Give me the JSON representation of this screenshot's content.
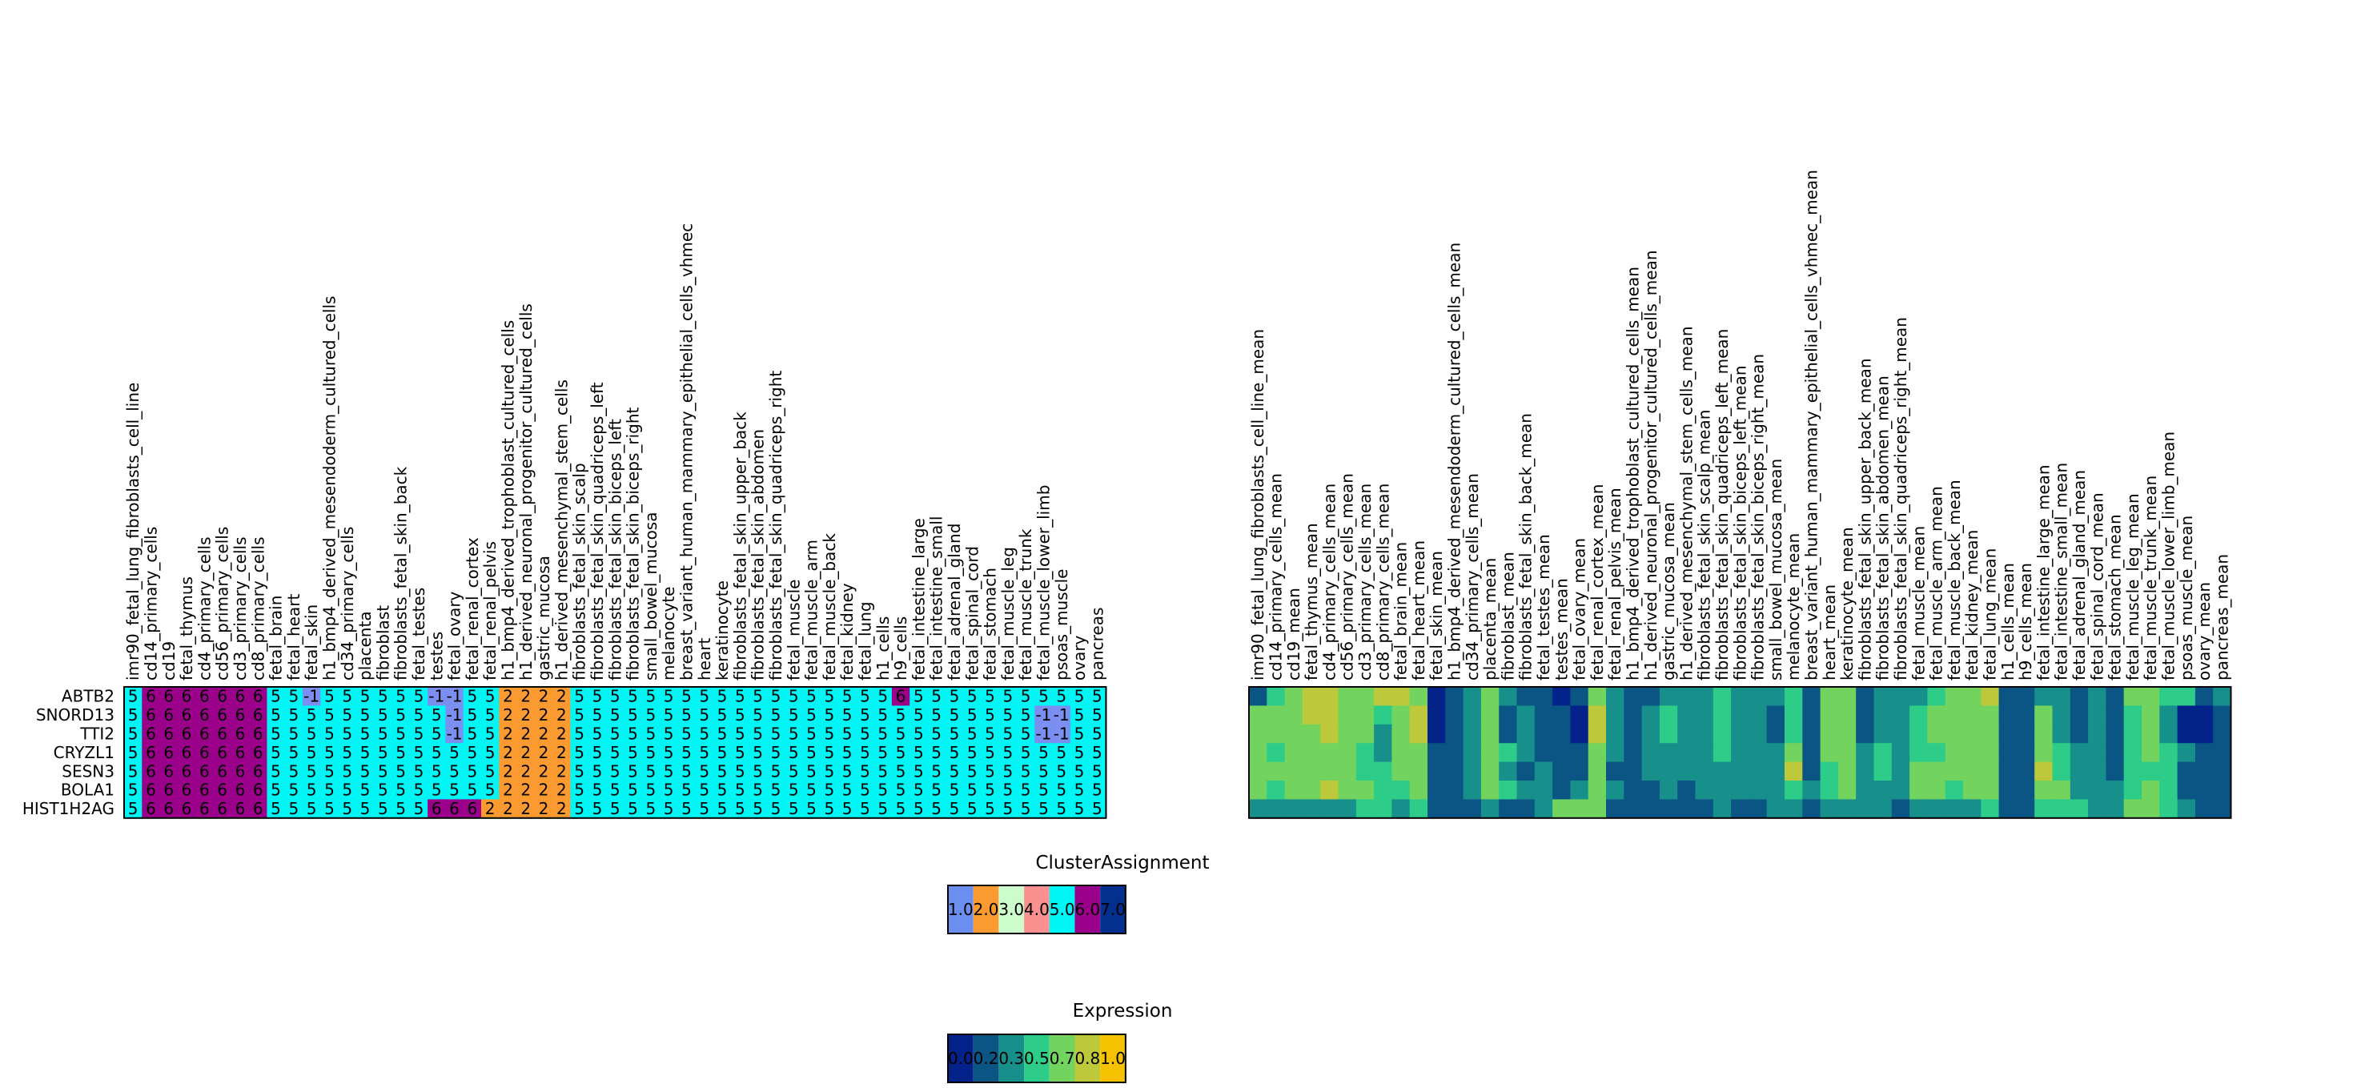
{
  "colors": {
    "cluster": {
      "-1": "#7b8ff0",
      "1": "#6b8ff0",
      "2": "#fb9a30",
      "3": "#ccfccc",
      "4": "#fb9090",
      "5": "#00f5f5",
      "6": "#9b008b",
      "7": "#03308f"
    },
    "expression_scale": [
      "#03228a",
      "#0b5585",
      "#178f8b",
      "#2dcc88",
      "#72d45e",
      "#bdc93a",
      "#f6c200"
    ],
    "border": "#000000"
  },
  "chart_data": [
    {
      "type": "heatmap",
      "name": "cluster-heatmap",
      "rows": [
        "ABTB2",
        "SNORD13",
        "TTI2",
        "CRYZL1",
        "SESN3",
        "BOLA1",
        "HIST1H2AG"
      ],
      "columns": [
        "imr90_fetal_lung_fibroblasts_cell_line",
        "cd14_primary_cells",
        "cd19",
        "fetal_thymus",
        "cd4_primary_cells",
        "cd56_primary_cells",
        "cd3_primary_cells",
        "cd8_primary_cells",
        "fetal_brain",
        "fetal_heart",
        "fetal_skin",
        "h1_bmp4_derived_mesendoderm_cultured_cells",
        "cd34_primary_cells",
        "placenta",
        "fibroblast",
        "fibroblasts_fetal_skin_back",
        "fetal_testes",
        "testes",
        "fetal_ovary",
        "fetal_renal_cortex",
        "fetal_renal_pelvis",
        "h1_bmp4_derived_trophoblast_cultured_cells",
        "h1_derived_neuronal_progenitor_cultured_cells",
        "gastric_mucosa",
        "h1_derived_mesenchymal_stem_cells",
        "fibroblasts_fetal_skin_scalp",
        "fibroblasts_fetal_skin_quadriceps_left",
        "fibroblasts_fetal_skin_biceps_left",
        "fibroblasts_fetal_skin_biceps_right",
        "small_bowel_mucosa",
        "melanocyte",
        "breast_variant_human_mammary_epithelial_cells_vhmec",
        "heart",
        "keratinocyte",
        "fibroblasts_fetal_skin_upper_back",
        "fibroblasts_fetal_skin_abdomen",
        "fibroblasts_fetal_skin_quadriceps_right",
        "fetal_muscle",
        "fetal_muscle_arm",
        "fetal_muscle_back",
        "fetal_kidney",
        "fetal_lung",
        "h1_cells",
        "h9_cells",
        "fetal_intestine_large",
        "fetal_intestine_small",
        "fetal_adrenal_gland",
        "fetal_spinal_cord",
        "fetal_stomach",
        "fetal_muscle_leg",
        "fetal_muscle_trunk",
        "fetal_muscle_lower_limb",
        "psoas_muscle",
        "ovary",
        "pancreas"
      ],
      "values": [
        [
          5,
          6,
          6,
          6,
          6,
          6,
          6,
          6,
          5,
          5,
          -1,
          5,
          5,
          5,
          5,
          5,
          5,
          -1,
          -1,
          5,
          5,
          2,
          2,
          2,
          2,
          5,
          5,
          5,
          5,
          5,
          5,
          5,
          5,
          5,
          5,
          5,
          5,
          5,
          5,
          5,
          5,
          5,
          5,
          6,
          5,
          5,
          5,
          5,
          5,
          5,
          5,
          5,
          5,
          5,
          5
        ],
        [
          5,
          6,
          6,
          6,
          6,
          6,
          6,
          6,
          5,
          5,
          5,
          5,
          5,
          5,
          5,
          5,
          5,
          5,
          -1,
          5,
          5,
          2,
          2,
          2,
          2,
          5,
          5,
          5,
          5,
          5,
          5,
          5,
          5,
          5,
          5,
          5,
          5,
          5,
          5,
          5,
          5,
          5,
          5,
          5,
          5,
          5,
          5,
          5,
          5,
          5,
          5,
          -1,
          -1,
          5,
          5
        ],
        [
          5,
          6,
          6,
          6,
          6,
          6,
          6,
          6,
          5,
          5,
          5,
          5,
          5,
          5,
          5,
          5,
          5,
          5,
          -1,
          5,
          5,
          2,
          2,
          2,
          2,
          5,
          5,
          5,
          5,
          5,
          5,
          5,
          5,
          5,
          5,
          5,
          5,
          5,
          5,
          5,
          5,
          5,
          5,
          5,
          5,
          5,
          5,
          5,
          5,
          5,
          5,
          -1,
          -1,
          5,
          5
        ],
        [
          5,
          6,
          6,
          6,
          6,
          6,
          6,
          6,
          5,
          5,
          5,
          5,
          5,
          5,
          5,
          5,
          5,
          5,
          5,
          5,
          5,
          2,
          2,
          2,
          2,
          5,
          5,
          5,
          5,
          5,
          5,
          5,
          5,
          5,
          5,
          5,
          5,
          5,
          5,
          5,
          5,
          5,
          5,
          5,
          5,
          5,
          5,
          5,
          5,
          5,
          5,
          5,
          5,
          5,
          5
        ],
        [
          5,
          6,
          6,
          6,
          6,
          6,
          6,
          6,
          5,
          5,
          5,
          5,
          5,
          5,
          5,
          5,
          5,
          5,
          5,
          5,
          5,
          2,
          2,
          2,
          2,
          5,
          5,
          5,
          5,
          5,
          5,
          5,
          5,
          5,
          5,
          5,
          5,
          5,
          5,
          5,
          5,
          5,
          5,
          5,
          5,
          5,
          5,
          5,
          5,
          5,
          5,
          5,
          5,
          5,
          5
        ],
        [
          5,
          6,
          6,
          6,
          6,
          6,
          6,
          6,
          5,
          5,
          5,
          5,
          5,
          5,
          5,
          5,
          5,
          5,
          5,
          5,
          5,
          2,
          2,
          2,
          2,
          5,
          5,
          5,
          5,
          5,
          5,
          5,
          5,
          5,
          5,
          5,
          5,
          5,
          5,
          5,
          5,
          5,
          5,
          5,
          5,
          5,
          5,
          5,
          5,
          5,
          5,
          5,
          5,
          5,
          5
        ],
        [
          5,
          6,
          6,
          6,
          6,
          6,
          6,
          6,
          5,
          5,
          5,
          5,
          5,
          5,
          5,
          5,
          5,
          6,
          6,
          6,
          2,
          2,
          2,
          2,
          2,
          5,
          5,
          5,
          5,
          5,
          5,
          5,
          5,
          5,
          5,
          5,
          5,
          5,
          5,
          5,
          5,
          5,
          5,
          5,
          5,
          5,
          5,
          5,
          5,
          5,
          5,
          5,
          5,
          5,
          5
        ]
      ]
    },
    {
      "type": "heatmap",
      "name": "expression-heatmap",
      "rows": [
        "ABTB2",
        "SNORD13",
        "TTI2",
        "CRYZL1",
        "SESN3",
        "BOLA1",
        "HIST1H2AG"
      ],
      "columns": [
        "imr90_fetal_lung_fibroblasts_cell_line_mean",
        "cd14_primary_cells_mean",
        "cd19_mean",
        "fetal_thymus_mean",
        "cd4_primary_cells_mean",
        "cd56_primary_cells_mean",
        "cd3_primary_cells_mean",
        "cd8_primary_cells_mean",
        "fetal_brain_mean",
        "fetal_heart_mean",
        "fetal_skin_mean",
        "h1_bmp4_derived_mesendoderm_cultured_cells_mean",
        "cd34_primary_cells_mean",
        "placenta_mean",
        "fibroblast_mean",
        "fibroblasts_fetal_skin_back_mean",
        "fetal_testes_mean",
        "testes_mean",
        "fetal_ovary_mean",
        "fetal_renal_cortex_mean",
        "fetal_renal_pelvis_mean",
        "h1_bmp4_derived_trophoblast_cultured_cells_mean",
        "h1_derived_neuronal_progenitor_cultured_cells_mean",
        "gastric_mucosa_mean",
        "h1_derived_mesenchymal_stem_cells_mean",
        "fibroblasts_fetal_skin_scalp_mean",
        "fibroblasts_fetal_skin_quadriceps_left_mean",
        "fibroblasts_fetal_skin_biceps_left_mean",
        "fibroblasts_fetal_skin_biceps_right_mean",
        "small_bowel_mucosa_mean",
        "melanocyte_mean",
        "breast_variant_human_mammary_epithelial_cells_vhmec_mean",
        "heart_mean",
        "keratinocyte_mean",
        "fibroblasts_fetal_skin_upper_back_mean",
        "fibroblasts_fetal_skin_abdomen_mean",
        "fibroblasts_fetal_skin_quadriceps_right_mean",
        "fetal_muscle_mean",
        "fetal_muscle_arm_mean",
        "fetal_muscle_back_mean",
        "fetal_kidney_mean",
        "fetal_lung_mean",
        "h1_cells_mean",
        "h9_cells_mean",
        "fetal_intestine_large_mean",
        "fetal_intestine_small_mean",
        "fetal_adrenal_gland_mean",
        "fetal_spinal_cord_mean",
        "fetal_stomach_mean",
        "fetal_muscle_leg_mean",
        "fetal_muscle_trunk_mean",
        "fetal_muscle_lower_limb_mean",
        "psoas_muscle_mean",
        "ovary_mean",
        "pancreas_mean"
      ],
      "values": [
        [
          0.2,
          0.5,
          0.7,
          0.8,
          0.8,
          0.7,
          0.7,
          0.8,
          0.8,
          0.7,
          0.0,
          0.1,
          0.4,
          0.6,
          0.3,
          0.2,
          0.1,
          0.0,
          0.2,
          0.7,
          0.3,
          0.1,
          0.2,
          0.3,
          0.3,
          0.4,
          0.5,
          0.3,
          0.4,
          0.3,
          0.5,
          0.2,
          0.6,
          0.6,
          0.2,
          0.3,
          0.3,
          0.4,
          0.5,
          0.6,
          0.7,
          0.8,
          0.1,
          0.2,
          0.4,
          0.3,
          0.2,
          0.3,
          0.2,
          0.6,
          0.7,
          0.5,
          0.5,
          0.1,
          0.3
        ],
        [
          0.7,
          0.6,
          0.7,
          0.8,
          0.8,
          0.7,
          0.6,
          0.5,
          0.6,
          0.8,
          0.0,
          0.1,
          0.3,
          0.7,
          0.2,
          0.3,
          0.1,
          0.1,
          0.0,
          0.8,
          0.3,
          0.2,
          0.3,
          0.5,
          0.3,
          0.4,
          0.5,
          0.3,
          0.3,
          0.2,
          0.5,
          0.2,
          0.7,
          0.7,
          0.2,
          0.4,
          0.3,
          0.5,
          0.6,
          0.6,
          0.7,
          0.7,
          0.2,
          0.2,
          0.6,
          0.4,
          0.2,
          0.3,
          0.2,
          0.5,
          0.6,
          0.4,
          0.0,
          0.0,
          0.2
        ],
        [
          0.7,
          0.6,
          0.7,
          0.7,
          0.8,
          0.6,
          0.6,
          0.4,
          0.6,
          0.8,
          0.0,
          0.1,
          0.3,
          0.7,
          0.2,
          0.3,
          0.1,
          0.1,
          0.0,
          0.8,
          0.3,
          0.2,
          0.3,
          0.5,
          0.3,
          0.4,
          0.5,
          0.3,
          0.3,
          0.2,
          0.5,
          0.2,
          0.7,
          0.7,
          0.2,
          0.4,
          0.3,
          0.5,
          0.6,
          0.6,
          0.7,
          0.7,
          0.2,
          0.2,
          0.6,
          0.4,
          0.2,
          0.3,
          0.2,
          0.5,
          0.6,
          0.4,
          0.0,
          0.0,
          0.2
        ],
        [
          0.6,
          0.5,
          0.6,
          0.7,
          0.7,
          0.6,
          0.5,
          0.4,
          0.6,
          0.7,
          0.1,
          0.1,
          0.4,
          0.6,
          0.5,
          0.3,
          0.2,
          0.2,
          0.1,
          0.7,
          0.3,
          0.2,
          0.3,
          0.4,
          0.3,
          0.4,
          0.5,
          0.3,
          0.3,
          0.3,
          0.7,
          0.2,
          0.6,
          0.6,
          0.3,
          0.5,
          0.3,
          0.5,
          0.5,
          0.6,
          0.7,
          0.7,
          0.2,
          0.2,
          0.6,
          0.5,
          0.3,
          0.3,
          0.2,
          0.5,
          0.6,
          0.5,
          0.3,
          0.1,
          0.2
        ],
        [
          0.6,
          0.6,
          0.6,
          0.7,
          0.7,
          0.6,
          0.5,
          0.5,
          0.6,
          0.7,
          0.1,
          0.2,
          0.4,
          0.6,
          0.4,
          0.2,
          0.3,
          0.2,
          0.2,
          0.6,
          0.2,
          0.2,
          0.3,
          0.3,
          0.3,
          0.4,
          0.4,
          0.3,
          0.4,
          0.3,
          0.8,
          0.2,
          0.5,
          0.6,
          0.3,
          0.5,
          0.3,
          0.6,
          0.6,
          0.6,
          0.6,
          0.6,
          0.1,
          0.2,
          0.8,
          0.5,
          0.4,
          0.3,
          0.2,
          0.5,
          0.5,
          0.5,
          0.2,
          0.1,
          0.2
        ],
        [
          0.6,
          0.5,
          0.6,
          0.7,
          0.8,
          0.6,
          0.6,
          0.5,
          0.5,
          0.7,
          0.1,
          0.2,
          0.3,
          0.6,
          0.5,
          0.3,
          0.3,
          0.2,
          0.3,
          0.6,
          0.3,
          0.2,
          0.2,
          0.4,
          0.2,
          0.3,
          0.4,
          0.3,
          0.3,
          0.3,
          0.5,
          0.3,
          0.5,
          0.6,
          0.3,
          0.4,
          0.3,
          0.6,
          0.6,
          0.5,
          0.6,
          0.6,
          0.2,
          0.2,
          0.7,
          0.6,
          0.4,
          0.4,
          0.3,
          0.5,
          0.6,
          0.5,
          0.2,
          0.1,
          0.2
        ],
        [
          0.3,
          0.3,
          0.4,
          0.4,
          0.4,
          0.4,
          0.5,
          0.5,
          0.4,
          0.5,
          0.1,
          0.1,
          0.2,
          0.4,
          0.2,
          0.2,
          0.3,
          0.7,
          0.7,
          0.6,
          0.2,
          0.1,
          0.1,
          0.2,
          0.2,
          0.2,
          0.3,
          0.2,
          0.2,
          0.3,
          0.3,
          0.2,
          0.4,
          0.4,
          0.3,
          0.3,
          0.2,
          0.4,
          0.3,
          0.4,
          0.4,
          0.5,
          0.1,
          0.1,
          0.5,
          0.5,
          0.5,
          0.3,
          0.3,
          0.6,
          0.7,
          0.5,
          0.3,
          0.1,
          0.2
        ]
      ]
    }
  ],
  "legends": {
    "cluster": {
      "title": "ClusterAssignment",
      "items": [
        {
          "label": "1.0",
          "color": "#6b8ff0"
        },
        {
          "label": "2.0",
          "color": "#fb9a30"
        },
        {
          "label": "3.0",
          "color": "#ccfccc"
        },
        {
          "label": "4.0",
          "color": "#fb9090"
        },
        {
          "label": "5.0",
          "color": "#00f5f5"
        },
        {
          "label": "6.0",
          "color": "#9b008b"
        },
        {
          "label": "7.0",
          "color": "#03308f"
        }
      ]
    },
    "expression": {
      "title": "Expression",
      "items": [
        {
          "label": "0.0",
          "color": "#03228a"
        },
        {
          "label": "0.2",
          "color": "#0b5585"
        },
        {
          "label": "0.3",
          "color": "#178f8b"
        },
        {
          "label": "0.5",
          "color": "#2dcc88"
        },
        {
          "label": "0.7",
          "color": "#72d45e"
        },
        {
          "label": "0.8",
          "color": "#bdc93a"
        },
        {
          "label": "1.0",
          "color": "#f6c200"
        }
      ]
    }
  }
}
